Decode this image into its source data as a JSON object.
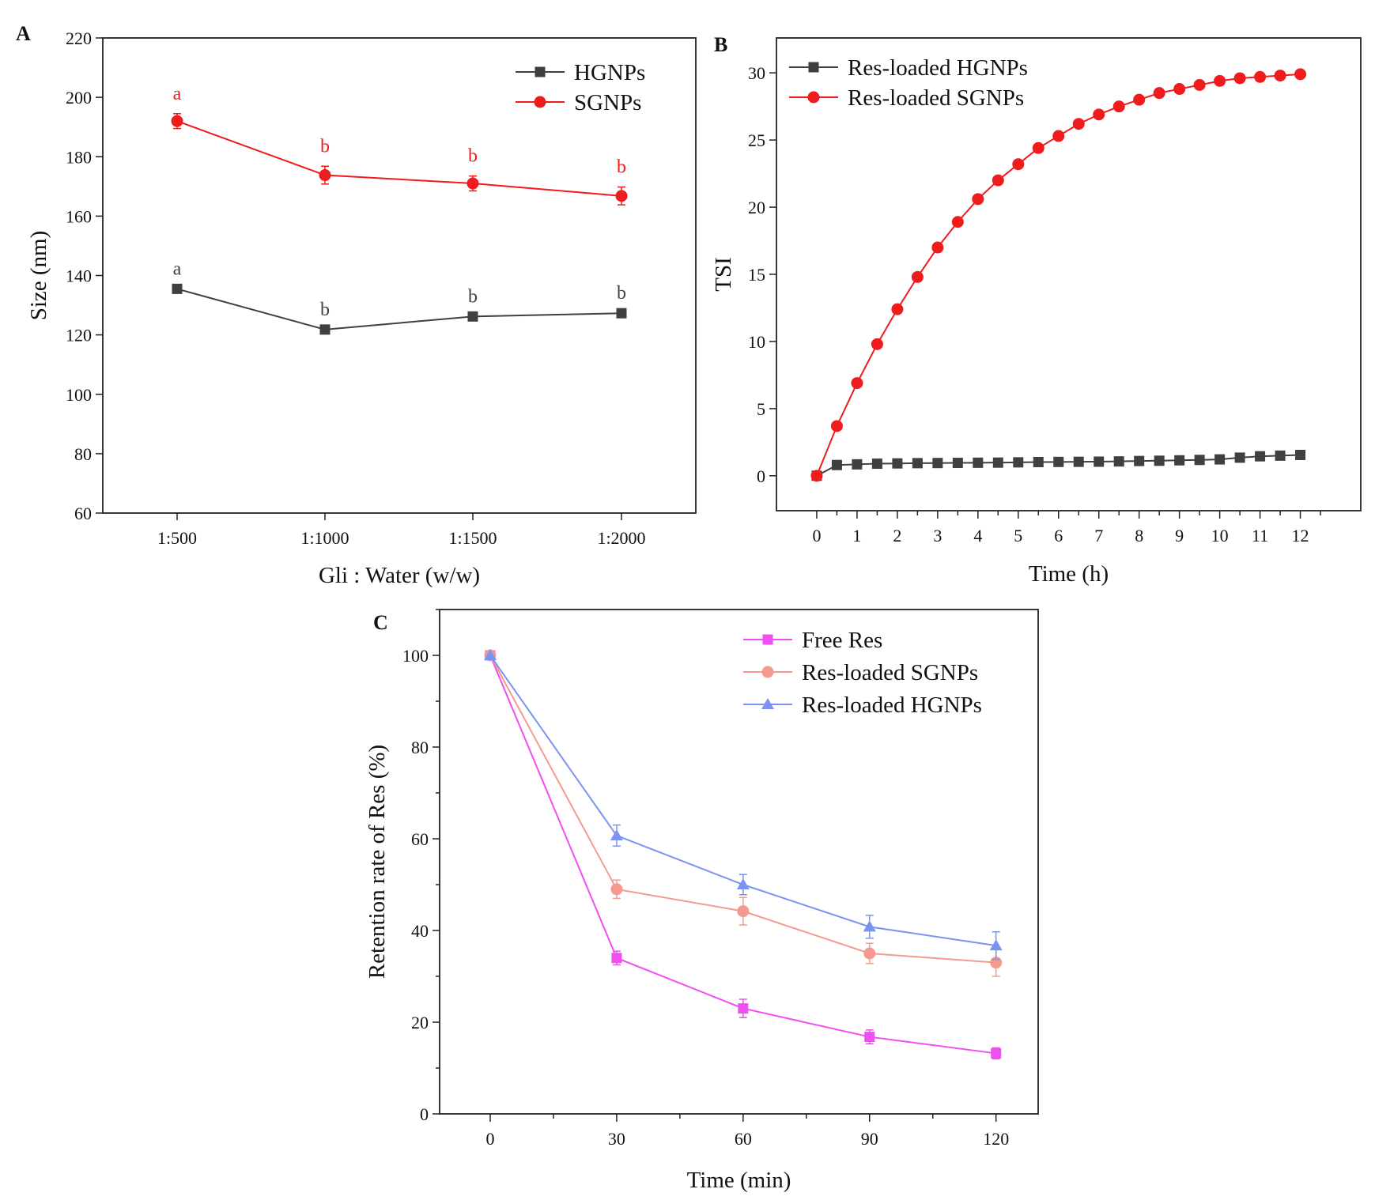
{
  "chart_data": [
    {
      "panel": "A",
      "type": "line",
      "xlabel": "Gli : Water (w/w)",
      "ylabel": "Size (nm)",
      "categories": [
        "1:500",
        "1:1000",
        "1:1500",
        "1:2000"
      ],
      "ylim": [
        60,
        220
      ],
      "yticks": [
        60,
        80,
        100,
        120,
        140,
        160,
        180,
        200,
        220
      ],
      "legend_position": "top-right",
      "series": [
        {
          "name": "HGNPs",
          "color": "#404040",
          "marker": "square",
          "values": [
            135.5,
            121.8,
            126.2,
            127.3
          ],
          "errors": [
            0,
            0,
            0,
            0
          ],
          "labels": [
            "a",
            "b",
            "b",
            "b"
          ]
        },
        {
          "name": "SGNPs",
          "color": "#ee1c1c",
          "marker": "circle",
          "values": [
            192,
            173.8,
            171,
            166.8
          ],
          "errors": [
            2.5,
            3,
            2.5,
            3
          ],
          "labels": [
            "a",
            "b",
            "b",
            "b"
          ]
        }
      ]
    },
    {
      "panel": "B",
      "type": "line",
      "xlabel": "Time (h)",
      "ylabel": "TSI",
      "xlim": [
        -1,
        13.5
      ],
      "xticks": [
        0,
        1,
        2,
        3,
        4,
        5,
        6,
        7,
        8,
        9,
        10,
        11,
        12
      ],
      "ylim": [
        -2.6,
        32.6
      ],
      "yticks": [
        0,
        5,
        10,
        15,
        20,
        25,
        30
      ],
      "legend_position": "top-left",
      "series": [
        {
          "name": "Res-loaded HGNPs",
          "color": "#404040",
          "marker": "square",
          "x": [
            0,
            0.5,
            1,
            1.5,
            2,
            2.5,
            3,
            3.5,
            4,
            4.5,
            5,
            5.5,
            6,
            6.5,
            7,
            7.5,
            8,
            8.5,
            9,
            9.5,
            10,
            10.5,
            11,
            11.5,
            12
          ],
          "values": [
            0,
            0.8,
            0.85,
            0.9,
            0.92,
            0.94,
            0.95,
            0.96,
            0.97,
            0.98,
            1.0,
            1.02,
            1.03,
            1.04,
            1.05,
            1.07,
            1.1,
            1.12,
            1.15,
            1.18,
            1.22,
            1.35,
            1.45,
            1.5,
            1.55
          ]
        },
        {
          "name": "Res-loaded SGNPs",
          "color": "#ee1c1c",
          "marker": "circle",
          "x": [
            0,
            0.5,
            1,
            1.5,
            2,
            2.5,
            3,
            3.5,
            4,
            4.5,
            5,
            5.5,
            6,
            6.5,
            7,
            7.5,
            8,
            8.5,
            9,
            9.5,
            10,
            10.5,
            11,
            11.5,
            12
          ],
          "values": [
            0,
            3.7,
            6.9,
            9.8,
            12.4,
            14.8,
            17.0,
            18.9,
            20.6,
            22.0,
            23.2,
            24.4,
            25.3,
            26.2,
            26.9,
            27.5,
            28.0,
            28.5,
            28.8,
            29.1,
            29.4,
            29.6,
            29.7,
            29.8,
            29.9
          ]
        }
      ]
    },
    {
      "panel": "C",
      "type": "line",
      "xlabel": "Time (min)",
      "ylabel": "Retention rate of  Res (%)",
      "xlim": [
        -12,
        130
      ],
      "xticks": [
        0,
        30,
        60,
        90,
        120
      ],
      "ylim": [
        0,
        110
      ],
      "yticks": [
        0,
        20,
        40,
        60,
        80,
        100
      ],
      "legend_position": "top-right",
      "series": [
        {
          "name": "Free Res",
          "color": "#f04ef0",
          "marker": "square",
          "x": [
            0,
            30,
            60,
            90,
            120
          ],
          "values": [
            100,
            34,
            23,
            16.8,
            13.2
          ],
          "errors": [
            0.5,
            1.5,
            2,
            1.5,
            1.2
          ]
        },
        {
          "name": "Res-loaded SGNPs",
          "color": "#f59a90",
          "marker": "circle",
          "x": [
            0,
            30,
            60,
            90,
            120
          ],
          "values": [
            100,
            49,
            44.2,
            35,
            33
          ],
          "errors": [
            0.5,
            2,
            3,
            2.2,
            3
          ]
        },
        {
          "name": "Res-loaded HGNPs",
          "color": "#7b93f0",
          "marker": "triangle",
          "x": [
            0,
            30,
            60,
            90,
            120
          ],
          "values": [
            100,
            60.7,
            50,
            40.8,
            36.7
          ],
          "errors": [
            0.5,
            2.3,
            2.2,
            2.5,
            3
          ]
        }
      ]
    }
  ]
}
